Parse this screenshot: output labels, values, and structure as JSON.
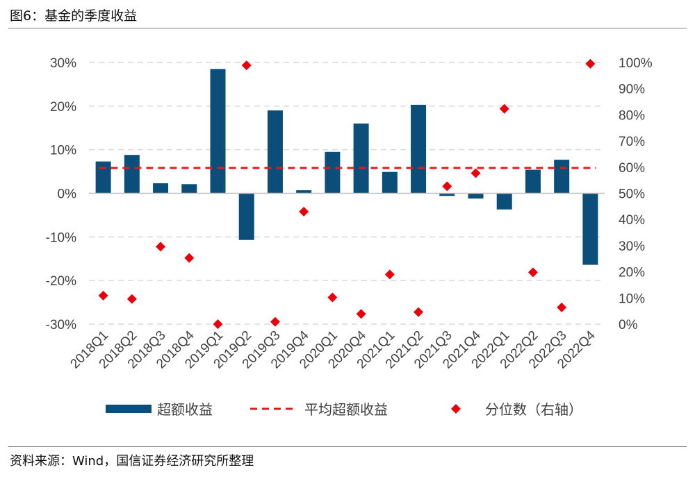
{
  "header": {
    "title": "图6：基金的季度收益"
  },
  "footer": {
    "source": "资料来源：Wind，国信证券经济研究所整理"
  },
  "colors": {
    "bar": "#0b4e7a",
    "avg": "#e31a1c",
    "marker": "#e8000b",
    "grid": "#d9d9d9"
  },
  "chart_data": {
    "type": "bar",
    "categories": [
      "2018Q1",
      "2018Q2",
      "2018Q3",
      "2018Q4",
      "2019Q1",
      "2019Q2",
      "2019Q3",
      "2019Q4",
      "2020Q1",
      "2020Q4",
      "2021Q1",
      "2021Q2",
      "2021Q3",
      "2021Q4",
      "2022Q1",
      "2022Q2",
      "2022Q3",
      "2022Q4"
    ],
    "series": [
      {
        "name": "超额收益",
        "type": "bar",
        "axis": "left",
        "values": [
          7.3,
          8.8,
          2.3,
          2.1,
          28.5,
          -10.7,
          19.0,
          0.7,
          9.5,
          16.0,
          4.9,
          20.3,
          -0.6,
          -1.2,
          -3.7,
          5.4,
          7.7,
          -16.4
        ]
      },
      {
        "name": "平均超额收益",
        "type": "line",
        "axis": "left",
        "style": "dashed",
        "values": [
          5.8,
          5.8,
          5.8,
          5.8,
          5.8,
          5.8,
          5.8,
          5.8,
          5.8,
          5.8,
          5.8,
          5.8,
          5.8,
          5.8,
          5.8,
          5.8,
          5.8,
          5.8
        ]
      },
      {
        "name": "分位数（右轴）",
        "type": "scatter",
        "axis": "right",
        "marker": "diamond",
        "values": [
          10.9,
          9.6,
          29.6,
          25.3,
          0.0,
          98.9,
          0.9,
          43.0,
          10.2,
          3.9,
          19.0,
          4.6,
          52.7,
          57.7,
          82.3,
          19.8,
          6.4,
          99.5
        ]
      }
    ],
    "yaxis_left": {
      "min": -30,
      "max": 30,
      "step": 10,
      "tick_labels": [
        "-30%",
        "-20%",
        "-10%",
        "0%",
        "10%",
        "20%",
        "30%"
      ]
    },
    "yaxis_right": {
      "min": 0,
      "max": 100,
      "step": 10,
      "tick_labels": [
        "0%",
        "10%",
        "20%",
        "30%",
        "40%",
        "50%",
        "60%",
        "70%",
        "80%",
        "90%",
        "100%"
      ]
    },
    "grid": true,
    "legend": {
      "position": "bottom",
      "entries": [
        {
          "label": "超额收益",
          "kind": "bar"
        },
        {
          "label": "平均超额收益",
          "kind": "dashed-line"
        },
        {
          "label": "分位数（右轴）",
          "kind": "diamond"
        }
      ]
    }
  }
}
